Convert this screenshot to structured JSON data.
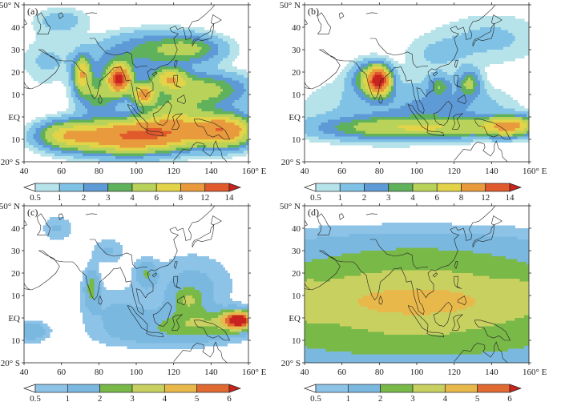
{
  "panels": [
    {
      "label": "(a)",
      "x_ticks": [
        "40",
        "60",
        "80",
        "100",
        "120",
        "140",
        "160° E"
      ],
      "y_ticks": [
        "50° N",
        "40",
        "30",
        "20",
        "10",
        "EQ",
        "10",
        "20° S"
      ],
      "colorbar": {
        "ticks": [
          "0.5",
          "1",
          "2",
          "3",
          "4",
          "6",
          "8",
          "12",
          "14"
        ],
        "colors": [
          "#ffffff",
          "#b6e2ea",
          "#7fc2e6",
          "#5e9ad6",
          "#5fb15c",
          "#b9d35a",
          "#e2d348",
          "#e89a3c",
          "#e05a2c",
          "#c8231e"
        ]
      }
    },
    {
      "label": "(b)",
      "x_ticks": [
        "40",
        "60",
        "80",
        "100",
        "120",
        "140",
        "160° E"
      ],
      "y_ticks": [
        "50° N",
        "40",
        "30",
        "20",
        "10",
        "EQ",
        "10",
        "20° S"
      ],
      "colorbar": {
        "ticks": [
          "0.5",
          "1",
          "2",
          "3",
          "4",
          "6",
          "8",
          "12",
          "14"
        ],
        "colors": [
          "#ffffff",
          "#b6e2ea",
          "#7fc2e6",
          "#5e9ad6",
          "#5fb15c",
          "#b9d35a",
          "#e2d348",
          "#e89a3c",
          "#e05a2c",
          "#c8231e"
        ]
      }
    },
    {
      "label": "(c)",
      "x_ticks": [
        "40",
        "60",
        "80",
        "100",
        "120",
        "140",
        "160° E"
      ],
      "y_ticks": [
        "50° N",
        "40",
        "30",
        "20",
        "10",
        "EQ",
        "10",
        "20° S"
      ],
      "colorbar": {
        "ticks": [
          "0.5",
          "1",
          "2",
          "3",
          "4",
          "5",
          "6"
        ],
        "colors": [
          "#ffffff",
          "#8ec3e8",
          "#7ab8e0",
          "#79b948",
          "#c8d060",
          "#e8b84a",
          "#e06a32",
          "#c8231e"
        ]
      }
    },
    {
      "label": "(d)",
      "x_ticks": [
        "40",
        "60",
        "80",
        "100",
        "120",
        "140",
        "160° E"
      ],
      "y_ticks": [
        "50° N",
        "40",
        "30",
        "20",
        "10",
        "EQ",
        "10",
        "20° S"
      ],
      "colorbar": {
        "ticks": [
          "0.5",
          "1",
          "2",
          "3",
          "4",
          "5",
          "6"
        ],
        "colors": [
          "#ffffff",
          "#8ec3e8",
          "#7ab8e0",
          "#79b948",
          "#c8d060",
          "#e8b84a",
          "#e06a32",
          "#c8231e"
        ]
      }
    }
  ],
  "fields": {
    "a": [
      {
        "lon": 96,
        "lat": -9,
        "sx": 22,
        "sy": 5,
        "amp": 11
      },
      {
        "lon": 62,
        "lat": -8,
        "sx": 10,
        "sy": 4,
        "amp": 5
      },
      {
        "lon": 125,
        "lat": -6,
        "sx": 20,
        "sy": 4,
        "amp": 6
      },
      {
        "lon": 148,
        "lat": -6,
        "sx": 10,
        "sy": 5,
        "amp": 8
      },
      {
        "lon": 91,
        "lat": 17,
        "sx": 4,
        "sy": 4,
        "amp": 14
      },
      {
        "lon": 104,
        "lat": 10,
        "sx": 4,
        "sy": 3,
        "amp": 9
      },
      {
        "lon": 71,
        "lat": 19,
        "sx": 3,
        "sy": 5,
        "amp": 7
      },
      {
        "lon": 134,
        "lat": 12,
        "sx": 18,
        "sy": 5,
        "amp": 5
      },
      {
        "lon": 118,
        "lat": 17,
        "sx": 6,
        "sy": 3,
        "amp": 6
      },
      {
        "lon": 120,
        "lat": 2,
        "sx": 12,
        "sy": 4,
        "amp": 4
      },
      {
        "lon": 130,
        "lat": 30,
        "sx": 12,
        "sy": 4,
        "amp": 3
      },
      {
        "lon": 80,
        "lat": 10,
        "sx": 8,
        "sy": 6,
        "amp": 4
      },
      {
        "lon": 60,
        "lat": 43,
        "sx": 10,
        "sy": 4,
        "amp": 1.5
      },
      {
        "lon": 112,
        "lat": 32,
        "sx": 18,
        "sy": 5,
        "amp": 2.2
      },
      {
        "lon": 95,
        "lat": 25,
        "sx": 22,
        "sy": 6,
        "amp": 2
      },
      {
        "lon": 50,
        "lat": 25,
        "sx": 8,
        "sy": 8,
        "amp": 0.9
      }
    ],
    "b": [
      {
        "lon": 80,
        "lat": 16,
        "sx": 4,
        "sy": 4,
        "amp": 14
      },
      {
        "lon": 74,
        "lat": 17,
        "sx": 6,
        "sy": 5,
        "amp": 4
      },
      {
        "lon": 85,
        "lat": -5,
        "sx": 28,
        "sy": 3.5,
        "amp": 4
      },
      {
        "lon": 150,
        "lat": -4,
        "sx": 10,
        "sy": 3,
        "amp": 8
      },
      {
        "lon": 120,
        "lat": -5,
        "sx": 22,
        "sy": 3,
        "amp": 3
      },
      {
        "lon": 128,
        "lat": 15,
        "sx": 4,
        "sy": 4,
        "amp": 4
      },
      {
        "lon": 112,
        "lat": 14,
        "sx": 4,
        "sy": 3,
        "amp": 3
      },
      {
        "lon": 118,
        "lat": 5,
        "sx": 22,
        "sy": 6,
        "amp": 1.6
      },
      {
        "lon": 80,
        "lat": 5,
        "sx": 30,
        "sy": 10,
        "amp": 1.2
      },
      {
        "lon": 140,
        "lat": 35,
        "sx": 20,
        "sy": 8,
        "amp": 1.2
      },
      {
        "lon": 110,
        "lat": 28,
        "sx": 12,
        "sy": 6,
        "amp": 0.9
      }
    ],
    "c": [
      {
        "lon": 155,
        "lat": -1,
        "sx": 6,
        "sy": 3,
        "amp": 6
      },
      {
        "lon": 135,
        "lat": -2,
        "sx": 18,
        "sy": 4,
        "amp": 2.5
      },
      {
        "lon": 128,
        "lat": 8,
        "sx": 6,
        "sy": 4,
        "amp": 2.2
      },
      {
        "lon": 76,
        "lat": 14,
        "sx": 3,
        "sy": 6,
        "amp": 2.2
      },
      {
        "lon": 105,
        "lat": 20,
        "sx": 4,
        "sy": 4,
        "amp": 1.8
      },
      {
        "lon": 44,
        "lat": -6,
        "sx": 6,
        "sy": 3,
        "amp": 2
      },
      {
        "lon": 90,
        "lat": 2,
        "sx": 14,
        "sy": 8,
        "amp": 1.1
      },
      {
        "lon": 130,
        "lat": 15,
        "sx": 16,
        "sy": 10,
        "amp": 1.2
      },
      {
        "lon": 58,
        "lat": 40,
        "sx": 6,
        "sy": 4,
        "amp": 1.1
      },
      {
        "lon": 85,
        "lat": 30,
        "sx": 6,
        "sy": 4,
        "amp": 1.1
      },
      {
        "lon": 120,
        "lat": -8,
        "sx": 25,
        "sy": 4,
        "amp": 1.2
      }
    ],
    "d": [
      {
        "lon": 100,
        "lat": 7,
        "sx": 80,
        "sy": 13,
        "amp": 4.3
      },
      {
        "lon": 100,
        "lat": 30,
        "sx": 70,
        "sy": 8,
        "amp": 1.2
      },
      {
        "lon": 100,
        "lat": -14,
        "sx": 80,
        "sy": 6,
        "amp": 1.3
      },
      {
        "lon": 40,
        "lat": 8,
        "sx": 6,
        "sy": 8,
        "amp": 0.6
      },
      {
        "lon": 155,
        "lat": 12,
        "sx": 6,
        "sy": 4,
        "amp": 0.5
      }
    ]
  }
}
